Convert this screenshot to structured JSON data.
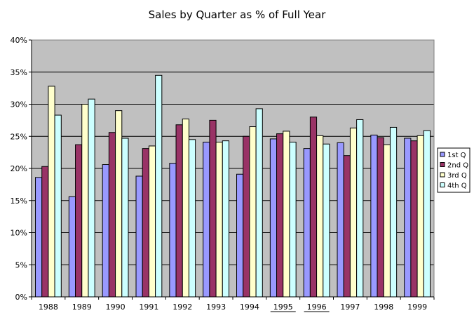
{
  "chart_data": {
    "type": "bar",
    "title": "Sales by Quarter as % of Full Year",
    "xlabel": "",
    "ylabel": "",
    "ylim": [
      0,
      40
    ],
    "yticks": [
      "0%",
      "5%",
      "10%",
      "15%",
      "20%",
      "25%",
      "30%",
      "35%",
      "40%"
    ],
    "categories": [
      "1988",
      "1989",
      "1990",
      "1991",
      "1992",
      "1993",
      "1994",
      "1995",
      "1996",
      "1997",
      "1998",
      "1999"
    ],
    "series": [
      {
        "name": "1st Q",
        "color": "#9999ff",
        "values": [
          18.6,
          15.6,
          20.6,
          18.8,
          20.8,
          24.1,
          19.1,
          24.6,
          23.1,
          24.0,
          25.2,
          24.7
        ]
      },
      {
        "name": "2nd Q",
        "color": "#993366",
        "values": [
          20.3,
          23.7,
          25.6,
          23.1,
          26.8,
          27.5,
          25.0,
          25.4,
          28.0,
          22.0,
          24.8,
          24.3
        ]
      },
      {
        "name": "3rd Q",
        "color": "#ffffcc",
        "values": [
          32.8,
          30.0,
          29.0,
          23.5,
          27.7,
          24.1,
          26.5,
          25.8,
          25.1,
          26.3,
          23.7,
          25.1
        ]
      },
      {
        "name": "4th Q",
        "color": "#ccffff",
        "values": [
          28.3,
          30.8,
          24.7,
          34.5,
          24.5,
          24.3,
          29.3,
          24.1,
          23.8,
          27.6,
          26.4,
          25.9
        ]
      }
    ],
    "grid": true,
    "legend": "right",
    "plot_background": "#c0c0c0",
    "underlined_categories": [
      "1995",
      "1996"
    ]
  }
}
